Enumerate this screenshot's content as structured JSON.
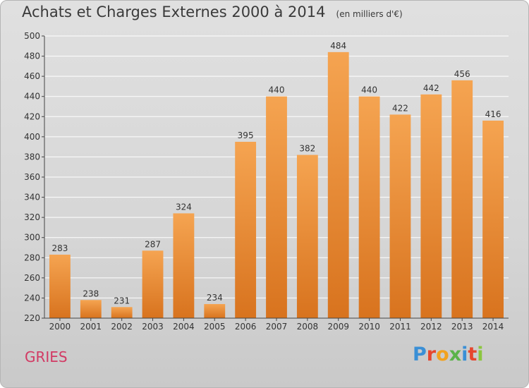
{
  "header": {
    "title": "Achats et Charges Externes 2000 à 2014",
    "unit": "(en milliers d'€)"
  },
  "footer": {
    "commune": "GRIES",
    "logo_text": "Proxiti",
    "logo_colors": [
      "#3a8fd6",
      "#e6462e",
      "#f2a21f",
      "#5bb34a",
      "#3a8fd6",
      "#e6462e",
      "#8cc63f"
    ]
  },
  "colors": {
    "bar_top": "#f5a451",
    "bar_bottom": "#d8731e",
    "grid": "#ffffff",
    "axis": "#444444",
    "text": "#333333"
  },
  "chart_data": {
    "type": "bar",
    "categories": [
      "2000",
      "2001",
      "2002",
      "2003",
      "2004",
      "2005",
      "2006",
      "2007",
      "2008",
      "2009",
      "2010",
      "2011",
      "2012",
      "2013",
      "2014"
    ],
    "values": [
      283,
      238,
      231,
      287,
      324,
      234,
      395,
      440,
      382,
      484,
      440,
      422,
      442,
      456,
      416
    ],
    "data_labels": [
      "283",
      "238",
      "231",
      "287",
      "324",
      "234",
      "395",
      "440",
      "382",
      "484",
      "440",
      "422",
      "442",
      "456",
      "416"
    ],
    "ylim": [
      220,
      500
    ],
    "yticks": [
      220,
      240,
      260,
      280,
      300,
      320,
      340,
      360,
      380,
      400,
      420,
      440,
      460,
      480,
      500
    ],
    "ytick_labels": [
      "220",
      "240",
      "260",
      "280",
      "300",
      "320",
      "340",
      "360",
      "380",
      "400",
      "420",
      "440",
      "460",
      "480",
      "500"
    ],
    "grid": true,
    "title": "Achats et Charges Externes 2000 à 2014",
    "xlabel": "",
    "ylabel": ""
  }
}
